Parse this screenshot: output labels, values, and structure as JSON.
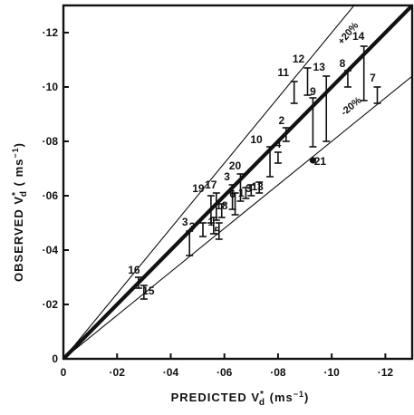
{
  "chart_data": {
    "type": "scatter",
    "title": "",
    "xlabel": "PREDICTED  V",
    "xlabel_symbol_sup": "*",
    "xlabel_symbol_sub": "d",
    "xlabel_units": " (ms",
    "xlabel_units_sup": "−1",
    "xlabel_units_close": ")",
    "ylabel": "OBSERVED  V",
    "ylabel_symbol_sup": "*",
    "ylabel_symbol_sub": "d",
    "ylabel_units": " ( ms",
    "ylabel_units_sup": "−1",
    "ylabel_units_close": ")",
    "xlim": [
      0,
      0.13
    ],
    "ylim": [
      0,
      0.13
    ],
    "x_ticks": [
      0,
      0.02,
      0.04,
      0.06,
      0.08,
      0.1,
      0.12
    ],
    "y_ticks": [
      0,
      0.02,
      0.04,
      0.06,
      0.08,
      0.1,
      0.12
    ],
    "x_tick_labels": [
      "0",
      "·02",
      "·04",
      "·06",
      "·08",
      "·10",
      "·12"
    ],
    "y_tick_labels": [
      "0",
      "·02",
      "·04",
      "·06",
      "·08",
      "·10",
      "·12"
    ],
    "grid": false,
    "reference_lines": [
      {
        "label": "+20%",
        "slope": 1.2
      },
      {
        "label": "",
        "slope": 1.0
      },
      {
        "label": "-20%",
        "slope": 0.8
      }
    ],
    "points": [
      {
        "label": "16",
        "x": 0.028,
        "low": 0.026,
        "high": 0.03
      },
      {
        "label": "15",
        "x": 0.03,
        "low": 0.022,
        "high": 0.027
      },
      {
        "label": "3",
        "x": 0.047,
        "low": 0.038,
        "high": 0.047
      },
      {
        "label": "3",
        "x": 0.052,
        "low": 0.045,
        "high": 0.05
      },
      {
        "label": "19",
        "x": 0.055,
        "low": 0.05,
        "high": 0.06
      },
      {
        "label": "17",
        "x": 0.057,
        "low": 0.051,
        "high": 0.061
      },
      {
        "label": "1",
        "x": 0.056,
        "low": 0.046,
        "high": 0.052
      },
      {
        "label": "5",
        "x": 0.058,
        "low": 0.044,
        "high": 0.05
      },
      {
        "label": "18",
        "x": 0.059,
        "low": 0.052,
        "high": 0.057
      },
      {
        "label": "3",
        "x": 0.063,
        "low": 0.055,
        "high": 0.064
      },
      {
        "label": "6",
        "x": 0.064,
        "low": 0.053,
        "high": 0.061
      },
      {
        "label": "20",
        "x": 0.066,
        "low": 0.058,
        "high": 0.068
      },
      {
        "label": "1",
        "x": 0.068,
        "low": 0.059,
        "high": 0.063
      },
      {
        "label": "3",
        "x": 0.07,
        "low": 0.06,
        "high": 0.064
      },
      {
        "label": "13",
        "x": 0.073,
        "low": 0.061,
        "high": 0.065
      },
      {
        "label": "10",
        "x": 0.077,
        "low": 0.067,
        "high": 0.078
      },
      {
        "label": "4",
        "x": 0.08,
        "low": 0.072,
        "high": 0.076
      },
      {
        "label": "2",
        "x": 0.083,
        "low": 0.08,
        "high": 0.085
      },
      {
        "label": "11",
        "x": 0.086,
        "low": 0.094,
        "high": 0.102
      },
      {
        "label": "12",
        "x": 0.091,
        "low": 0.097,
        "high": 0.107
      },
      {
        "label": "9",
        "x": 0.093,
        "low": 0.078,
        "high": 0.096
      },
      {
        "label": "13",
        "x": 0.098,
        "low": 0.08,
        "high": 0.104
      },
      {
        "label": "8",
        "x": 0.106,
        "low": 0.1,
        "high": 0.106
      },
      {
        "label": "14",
        "x": 0.112,
        "low": 0.095,
        "high": 0.115
      },
      {
        "label": "7",
        "x": 0.117,
        "low": 0.094,
        "high": 0.1
      },
      {
        "label": "21",
        "x": 0.093,
        "y": 0.073,
        "marker": "dot"
      }
    ],
    "best_fit": {
      "slope": 1.0
    }
  }
}
